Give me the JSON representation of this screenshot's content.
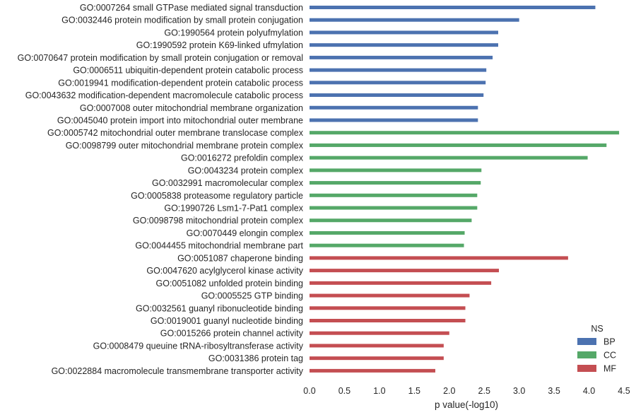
{
  "chart_data": {
    "type": "bar",
    "orientation": "horizontal",
    "xlabel": "p value(-log10)",
    "xlim": [
      0,
      4.5
    ],
    "xticks": [
      "0.0",
      "0.5",
      "1.0",
      "1.5",
      "2.0",
      "2.5",
      "3.0",
      "3.5",
      "4.0",
      "4.5"
    ],
    "grid": false,
    "legend": {
      "title": "NS",
      "position": "bottom-right",
      "entries": [
        {
          "name": "BP",
          "color": "#4c72b0"
        },
        {
          "name": "CC",
          "color": "#55a868"
        },
        {
          "name": "MF",
          "color": "#c44e52"
        }
      ]
    },
    "bars": [
      {
        "label": "GO:0007264 small GTPase mediated signal transduction",
        "value": 4.09,
        "ns": "BP"
      },
      {
        "label": "GO:0032446 protein modification by small protein conjugation",
        "value": 3.0,
        "ns": "BP"
      },
      {
        "label": "GO:1990564 protein polyufmylation",
        "value": 2.7,
        "ns": "BP"
      },
      {
        "label": "GO:1990592 protein K69-linked ufmylation",
        "value": 2.7,
        "ns": "BP"
      },
      {
        "label": "GO:0070647 protein modification by small protein conjugation or removal",
        "value": 2.62,
        "ns": "BP"
      },
      {
        "label": "GO:0006511 ubiquitin-dependent protein catabolic process",
        "value": 2.53,
        "ns": "BP"
      },
      {
        "label": "GO:0019941 modification-dependent protein catabolic process",
        "value": 2.52,
        "ns": "BP"
      },
      {
        "label": "GO:0043632 modification-dependent macromolecule catabolic process",
        "value": 2.49,
        "ns": "BP"
      },
      {
        "label": "GO:0007008 outer mitochondrial membrane organization",
        "value": 2.41,
        "ns": "BP"
      },
      {
        "label": "GO:0045040 protein import into mitochondrial outer membrane",
        "value": 2.41,
        "ns": "BP"
      },
      {
        "label": "GO:0005742 mitochondrial outer membrane translocase complex",
        "value": 4.43,
        "ns": "CC"
      },
      {
        "label": "GO:0098799 outer mitochondrial membrane protein complex",
        "value": 4.25,
        "ns": "CC"
      },
      {
        "label": "GO:0016272 prefoldin complex",
        "value": 3.98,
        "ns": "CC"
      },
      {
        "label": "GO:0043234 protein complex",
        "value": 2.46,
        "ns": "CC"
      },
      {
        "label": "GO:0032991 macromolecular complex",
        "value": 2.45,
        "ns": "CC"
      },
      {
        "label": "GO:0005838 proteasome regulatory particle",
        "value": 2.4,
        "ns": "CC"
      },
      {
        "label": "GO:1990726 Lsm1-7-Pat1 complex",
        "value": 2.4,
        "ns": "CC"
      },
      {
        "label": "GO:0098798 mitochondrial protein complex",
        "value": 2.32,
        "ns": "CC"
      },
      {
        "label": "GO:0070449 elongin complex",
        "value": 2.22,
        "ns": "CC"
      },
      {
        "label": "GO:0044455 mitochondrial membrane part",
        "value": 2.21,
        "ns": "CC"
      },
      {
        "label": "GO:0051087 chaperone binding",
        "value": 3.7,
        "ns": "MF"
      },
      {
        "label": "GO:0047620 acylglycerol kinase activity",
        "value": 2.71,
        "ns": "MF"
      },
      {
        "label": "GO:0051082 unfolded protein binding",
        "value": 2.6,
        "ns": "MF"
      },
      {
        "label": "GO:0005525 GTP binding",
        "value": 2.29,
        "ns": "MF"
      },
      {
        "label": "GO:0032561 guanyl ribonucleotide binding",
        "value": 2.23,
        "ns": "MF"
      },
      {
        "label": "GO:0019001 guanyl nucleotide binding",
        "value": 2.23,
        "ns": "MF"
      },
      {
        "label": "GO:0015266 protein channel activity",
        "value": 2.0,
        "ns": "MF"
      },
      {
        "label": "GO:0008479 queuine tRNA-ribosyltransferase activity",
        "value": 1.92,
        "ns": "MF"
      },
      {
        "label": "GO:0031386 protein tag",
        "value": 1.92,
        "ns": "MF"
      },
      {
        "label": "GO:0022884 macromolecule transmembrane transporter activity",
        "value": 1.8,
        "ns": "MF"
      }
    ]
  }
}
